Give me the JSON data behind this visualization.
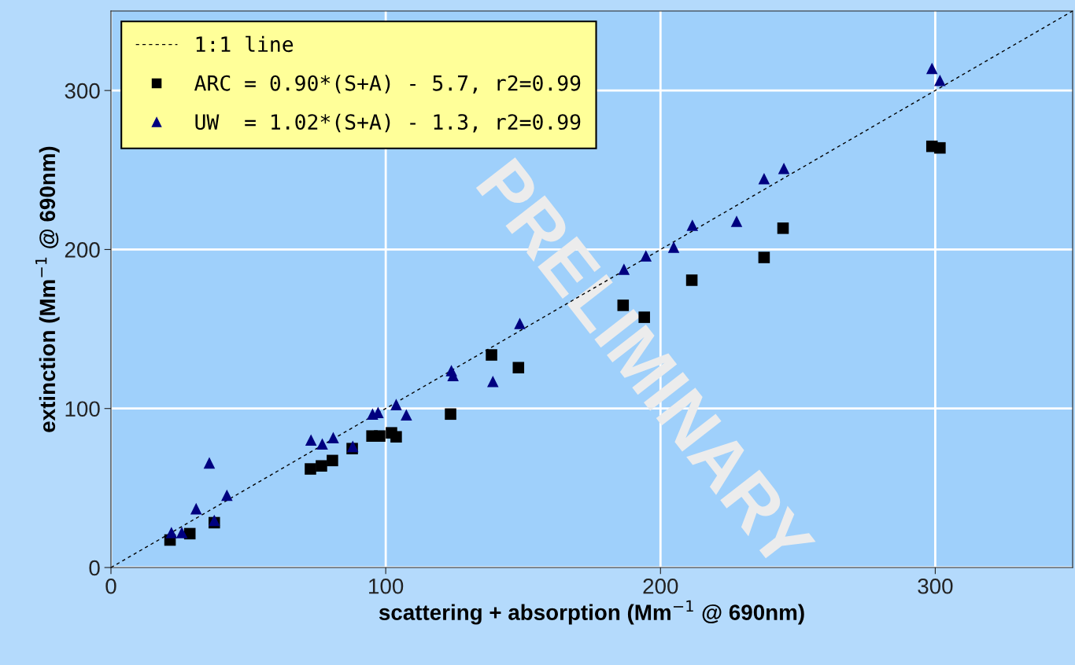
{
  "chart_data": {
    "type": "scatter",
    "xlabel": "scattering + absorption (Mm$^{−1}$ @ 690nm)",
    "ylabel": "extinction (Mm$^{−1}$ @ 690nm)",
    "annotations": [
      "PRELIMINARY"
    ],
    "xlim": [
      0,
      350
    ],
    "ylim": [
      0,
      350
    ],
    "xticks": [
      0,
      100,
      200,
      300
    ],
    "yticks": [
      0,
      100,
      200,
      300
    ],
    "grid": true,
    "legend": "top left",
    "series": [
      {
        "name": "1:1 line",
        "type": "line",
        "color": "#000000",
        "line_style": "dashed",
        "marker": "none",
        "x": [
          0,
          350
        ],
        "values": [
          0,
          350
        ]
      },
      {
        "name": "ARC = 0.90*(S+A) - 5.7, r2=0.99",
        "marker": "square",
        "color": "#000000",
        "x": [
          21.5,
          28.7,
          37.6,
          72.6,
          76.6,
          80.6,
          87.8,
          95,
          97.8,
          102.1,
          103.8,
          123.6,
          138.5,
          148.3,
          186.4,
          194.1,
          211.4,
          237.7,
          244.6,
          298.8,
          301.7
        ],
        "values": [
          17.3,
          21.3,
          28.2,
          62,
          63.9,
          67.3,
          74.8,
          82.7,
          82.7,
          84.7,
          82.2,
          96.5,
          133.7,
          125.7,
          164.9,
          157.4,
          180.7,
          195,
          213.4,
          264.9,
          263.9
        ]
      },
      {
        "name": "UW  = 1.02*(S+A) - 1.3, r2=0.99",
        "marker": "triangle",
        "color": "#000080",
        "x": [
          22,
          25.8,
          31,
          35.8,
          37.6,
          42.2,
          72.8,
          76.9,
          80.9,
          88,
          95.2,
          97.2,
          103.8,
          107.5,
          123.9,
          124.5,
          139,
          148.8,
          186.7,
          194.7,
          204.8,
          211.6,
          227.7,
          237.7,
          244.9,
          298.8,
          301.7
        ],
        "values": [
          22,
          22,
          37,
          65.8,
          29.7,
          45.5,
          80.2,
          77.7,
          81.7,
          76.2,
          96.5,
          97.5,
          102.5,
          96,
          123.8,
          120.8,
          117,
          153.5,
          187.6,
          196,
          201.5,
          215.3,
          217.8,
          244.6,
          251,
          313.9,
          306.4
        ]
      }
    ]
  }
}
